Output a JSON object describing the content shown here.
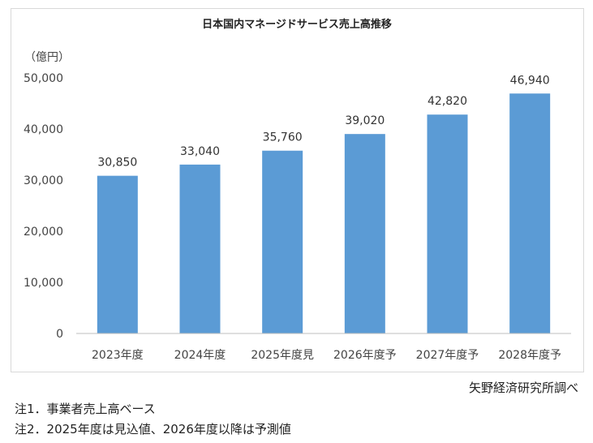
{
  "chart_data": {
    "type": "bar",
    "title": "日本国内マネージドサービス売上高推移",
    "ylabel": "（億円）",
    "xlabel": "",
    "categories": [
      "2023年度",
      "2024年度",
      "2025年度見",
      "2026年度予",
      "2027年度予",
      "2028年度予"
    ],
    "values": [
      30850,
      33040,
      35760,
      39020,
      42820,
      46940
    ],
    "data_labels": [
      "30,850",
      "33,040",
      "35,760",
      "39,020",
      "42,820",
      "46,940"
    ],
    "ylim": [
      0,
      50000
    ],
    "yticks": [
      0,
      10000,
      20000,
      30000,
      40000,
      50000
    ],
    "ytick_labels": [
      "0",
      "10,000",
      "20,000",
      "30,000",
      "40,000",
      "50,000"
    ],
    "grid": false,
    "bar_color": "#5b9bd5"
  },
  "source": "矢野経済研究所調べ",
  "notes": [
    "注1．事業者売上高ベース",
    "注2．2025年度は見込値、2026年度以降は予測値"
  ]
}
